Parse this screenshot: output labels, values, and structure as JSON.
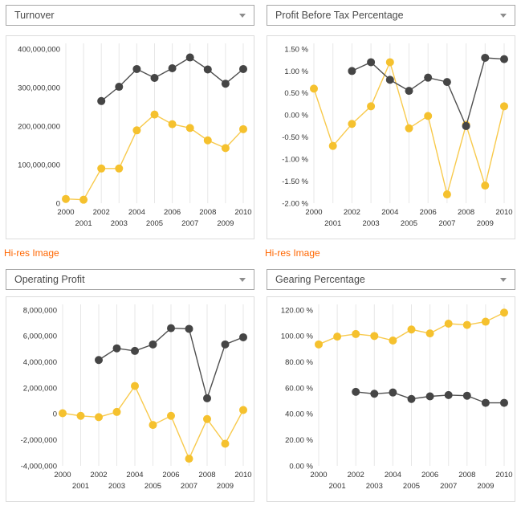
{
  "colors": {
    "series_dark": "#454545",
    "series_dark_line": "#4f4f4f",
    "series_yellow": "#f5c12e",
    "series_yellow_line": "#f8ca4d",
    "grid": "#e7e7e7",
    "panel_border": "#dcdcdc",
    "dropdown_border": "#a6a6a6",
    "tick_text": "#333333",
    "link": "#ff6600"
  },
  "dropdowns": [
    "Turnover",
    "Profit Before Tax Percentage",
    "Operating Profit",
    "Gearing Percentage"
  ],
  "hires_links": [
    {
      "label": "Hi-res Image"
    },
    {
      "label": "Hi-res Image"
    }
  ],
  "chart_data": [
    {
      "type": "line",
      "title": "Turnover",
      "x": [
        2000,
        2001,
        2002,
        2003,
        2004,
        2005,
        2006,
        2007,
        2008,
        2009,
        2010
      ],
      "ylim": [
        0,
        400000000
      ],
      "grid": "vertical",
      "legend": "none",
      "yticks": [
        {
          "v": 400000000,
          "label": "400,000,000"
        },
        {
          "v": 300000000,
          "label": "300,000,000"
        },
        {
          "v": 200000000,
          "label": "200,000,000"
        },
        {
          "v": 100000000,
          "label": "100,000,000"
        },
        {
          "v": 0,
          "label": "0"
        }
      ],
      "series": [
        {
          "name": "series-yellow",
          "values": [
            11000000,
            9000000,
            90000000,
            90000000,
            189000000,
            230000000,
            205000000,
            195000000,
            163000000,
            143000000,
            192000000
          ]
        },
        {
          "name": "series-dark",
          "values": [
            null,
            null,
            265000000,
            302000000,
            348000000,
            325000000,
            350000000,
            378000000,
            347000000,
            310000000,
            348000000
          ]
        }
      ]
    },
    {
      "type": "line",
      "title": "Profit Before Tax Percentage",
      "x": [
        2000,
        2001,
        2002,
        2003,
        2004,
        2005,
        2006,
        2007,
        2008,
        2009,
        2010
      ],
      "ylim": [
        -2.0,
        1.5
      ],
      "grid": "vertical",
      "legend": "none",
      "yticks": [
        {
          "v": 1.5,
          "label": "1.50 %"
        },
        {
          "v": 1.0,
          "label": "1.00 %"
        },
        {
          "v": 0.5,
          "label": "0.50 %"
        },
        {
          "v": 0.0,
          "label": "0.00 %"
        },
        {
          "v": -0.5,
          "label": "-0.50 %"
        },
        {
          "v": -1.0,
          "label": "-1.00 %"
        },
        {
          "v": -1.5,
          "label": "-1.50 %"
        },
        {
          "v": -2.0,
          "label": "-2.00 %"
        }
      ],
      "series": [
        {
          "name": "series-yellow",
          "values": [
            0.6,
            -0.7,
            -0.2,
            0.2,
            1.2,
            -0.3,
            -0.02,
            -1.8,
            -0.22,
            -1.6,
            0.2
          ]
        },
        {
          "name": "series-dark",
          "values": [
            null,
            null,
            1.0,
            1.2,
            0.8,
            0.55,
            0.85,
            0.75,
            -0.25,
            1.3,
            1.27
          ]
        }
      ]
    },
    {
      "type": "line",
      "title": "Operating Profit",
      "x": [
        2000,
        2001,
        2002,
        2003,
        2004,
        2005,
        2006,
        2007,
        2008,
        2009,
        2010
      ],
      "ylim": [
        -4000000,
        8000000
      ],
      "grid": "vertical",
      "legend": "none",
      "yticks": [
        {
          "v": 8000000,
          "label": "8,000,000"
        },
        {
          "v": 6000000,
          "label": "6,000,000"
        },
        {
          "v": 4000000,
          "label": "4,000,000"
        },
        {
          "v": 2000000,
          "label": "2,000,000"
        },
        {
          "v": 0,
          "label": "0"
        },
        {
          "v": -2000000,
          "label": "-2,000,000"
        },
        {
          "v": -4000000,
          "label": "-4,000,000"
        }
      ],
      "series": [
        {
          "name": "series-yellow",
          "values": [
            50000,
            -150000,
            -250000,
            150000,
            2150000,
            -850000,
            -150000,
            -3450000,
            -400000,
            -2300000,
            300000
          ]
        },
        {
          "name": "series-dark",
          "values": [
            null,
            null,
            4150000,
            5050000,
            4850000,
            5350000,
            6600000,
            6550000,
            1200000,
            5350000,
            5900000
          ]
        }
      ]
    },
    {
      "type": "line",
      "title": "Gearing Percentage",
      "x": [
        2000,
        2001,
        2002,
        2003,
        2004,
        2005,
        2006,
        2007,
        2008,
        2009,
        2010
      ],
      "ylim": [
        0,
        120
      ],
      "grid": "vertical",
      "legend": "none",
      "yticks": [
        {
          "v": 120,
          "label": "120.00 %"
        },
        {
          "v": 100,
          "label": "100.00 %"
        },
        {
          "v": 80,
          "label": "80.00 %"
        },
        {
          "v": 60,
          "label": "60.00 %"
        },
        {
          "v": 40,
          "label": "40.00 %"
        },
        {
          "v": 20,
          "label": "20.00 %"
        },
        {
          "v": 0,
          "label": "0.00 %"
        }
      ],
      "series": [
        {
          "name": "series-yellow",
          "values": [
            93.5,
            99.5,
            101.5,
            100,
            96.5,
            105,
            102,
            109.5,
            108.5,
            111,
            118
          ]
        },
        {
          "name": "series-dark",
          "values": [
            null,
            null,
            57,
            55.5,
            56.5,
            51.5,
            53.5,
            54.5,
            54,
            48.5,
            48.5
          ]
        }
      ]
    }
  ]
}
